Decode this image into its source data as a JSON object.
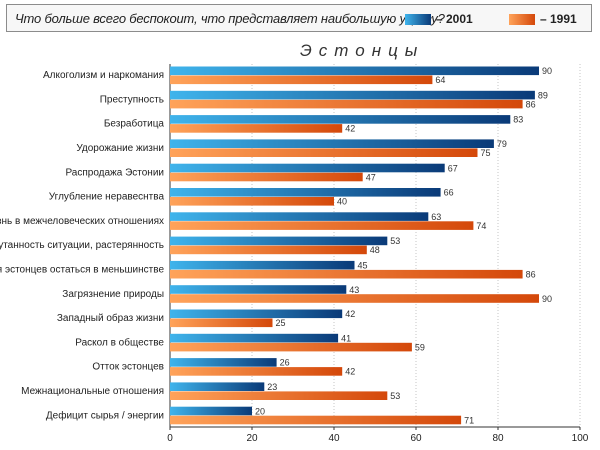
{
  "question": "Что больше всего беспокоит, что представляет наибольшую угрозу?",
  "subtitle": "Эстонцы",
  "colors": {
    "s2001_light": "#3fb4ec",
    "s2001_dark": "#0a3a78",
    "s1991_light": "#ffa35a",
    "s1991_dark": "#d4480a"
  },
  "chart_data": {
    "type": "bar",
    "orientation": "horizontal",
    "title": "Что больше всего беспокоит, что представляет наибольшую угрозу?",
    "subtitle": "Эстонцы",
    "categories": [
      "Алкоголизм и наркомания",
      "Преступность",
      "Безработица",
      "Удорожание жизни",
      "Распродажа Эстонии",
      "Углубление неравеснтва",
      "Неприязнь в межчеловеческих отношениях",
      "Запутанность ситуации, растерянность",
      "Угроза для эстонцев остаться в меньшинстве",
      "Загрязнение природы",
      "Западный образ жизни",
      "Раскол в обществе",
      "Отток эстонцев",
      "Межнациональные отношения",
      "Дефицит сырья / энергии"
    ],
    "series": [
      {
        "name": "– 2001",
        "values": [
          90,
          89,
          83,
          79,
          67,
          66,
          63,
          53,
          45,
          43,
          42,
          41,
          26,
          23,
          20
        ]
      },
      {
        "name": "– 1991",
        "values": [
          64,
          86,
          42,
          75,
          47,
          40,
          74,
          48,
          86,
          90,
          25,
          59,
          42,
          53,
          71
        ]
      }
    ],
    "xlim": [
      0,
      100
    ],
    "xticks": [
      0,
      20,
      40,
      60,
      80,
      100
    ],
    "grid": true,
    "legend": "top-right"
  }
}
